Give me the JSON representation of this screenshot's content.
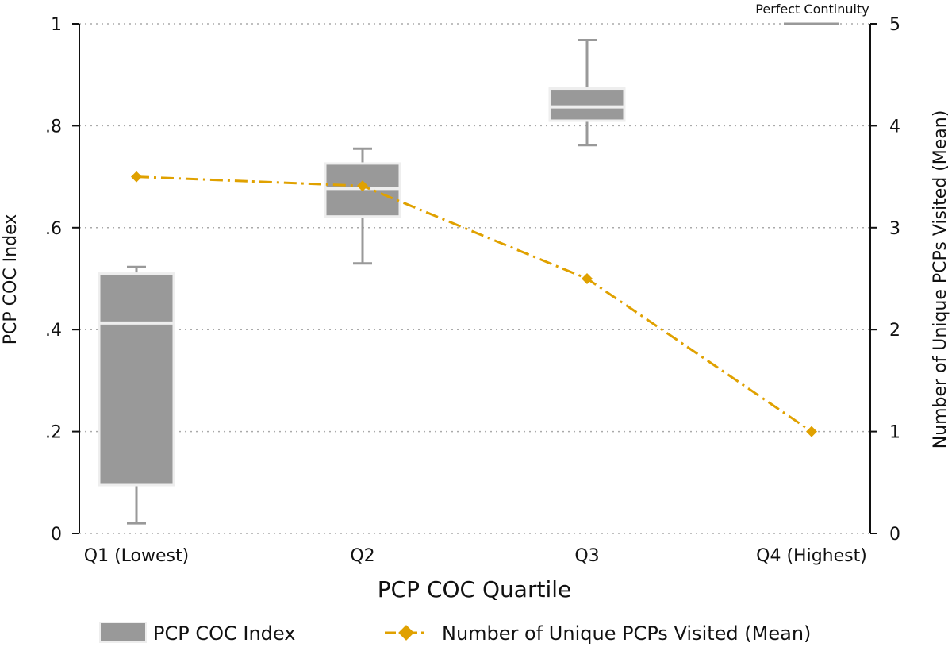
{
  "chart_data": {
    "type": "box+line",
    "title": "",
    "xlabel": "PCP COC Quartile",
    "ylabel_left": "PCP COC Index",
    "ylabel_right": "Number of Unique PCPs Visited (Mean)",
    "categories": [
      "Q1 (Lowest)",
      "Q2",
      "Q3",
      "Q4 (Highest)"
    ],
    "y_left": {
      "range": [
        0,
        1
      ],
      "ticks": [
        0,
        0.2,
        0.4,
        0.6,
        0.8,
        1
      ],
      "tick_labels": [
        "0",
        ".2",
        ".4",
        ".6",
        ".8",
        "1"
      ]
    },
    "y_right": {
      "range": [
        0,
        5
      ],
      "ticks": [
        0,
        1,
        2,
        3,
        4,
        5
      ],
      "tick_labels": [
        "0",
        "1",
        "2",
        "3",
        "4",
        "5"
      ]
    },
    "grid": "horizontal-dotted",
    "boxes": [
      {
        "category": "Q1 (Lowest)",
        "whisker_low": 0.02,
        "q1": 0.095,
        "median": 0.413,
        "q3": 0.51,
        "whisker_high": 0.523
      },
      {
        "category": "Q2",
        "whisker_low": 0.53,
        "q1": 0.622,
        "median": 0.677,
        "q3": 0.726,
        "whisker_high": 0.755
      },
      {
        "category": "Q3",
        "whisker_low": 0.762,
        "q1": 0.81,
        "median": 0.837,
        "q3": 0.873,
        "whisker_high": 0.968
      },
      {
        "category": "Q4 (Highest)",
        "whisker_low": 1.0,
        "q1": 1.0,
        "median": 1.0,
        "q3": 1.0,
        "whisker_high": 1.0
      }
    ],
    "series": [
      {
        "name": "Number of Unique PCPs Visited (Mean)",
        "axis": "right",
        "values": [
          3.5,
          3.41,
          2.5,
          1.0
        ]
      }
    ],
    "annotation": "Perfect Continuity",
    "legend": {
      "placement": "bottom",
      "items": [
        {
          "label": "PCP COC Index",
          "kind": "box"
        },
        {
          "label": "Number of Unique PCPs Visited (Mean)",
          "kind": "line"
        }
      ]
    },
    "colors": {
      "box": "#999999",
      "box_edge": "#eeeeee",
      "whisker": "#999999",
      "line": "#e0a100",
      "grid": "#aaaaaa",
      "axis": "#111111"
    }
  }
}
